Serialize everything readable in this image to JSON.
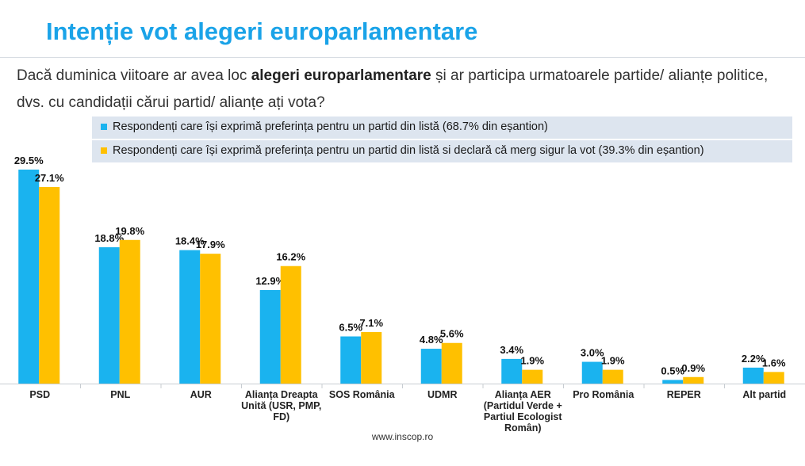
{
  "header": {
    "title": "Intenție vot alegeri europarlamentare",
    "question_pre": "Dacă duminica viitoare ar avea loc ",
    "question_bold": "alegeri europarlamentare",
    "question_post": " și ar participa urmatoarele partide/ alianțe politice, dvs. cu candidații cărui partid/ alianțe ați vota?"
  },
  "colors": {
    "title": "#1aa3e8",
    "legend_band": "#dde5ef",
    "series1": "#1ab3ef",
    "series2": "#ffc000"
  },
  "legend": {
    "items": [
      "Respondenți care își exprimă preferința pentru un partid din listă (68.7% din eșantion)",
      "Respondenți care își exprimă preferința pentru un partid din listă si declară că merg sigur la vot (39.3% din eșantion)"
    ]
  },
  "chart_data": {
    "type": "bar",
    "categories": [
      "PSD",
      "PNL",
      "AUR",
      "Alianța Dreapta Unită (USR, PMP, FD)",
      "SOS România",
      "UDMR",
      "Alianța AER (Partidul Verde + Partiul Ecologist Român)",
      "Pro România",
      "REPER",
      "Alt partid"
    ],
    "series": [
      {
        "name": "Respondenți care își exprimă preferința pentru un partid din listă (68.7% din eșantion)",
        "values": [
          29.5,
          18.8,
          18.4,
          12.9,
          6.5,
          4.8,
          3.4,
          3.0,
          0.5,
          2.2
        ],
        "labels": [
          "29.5%",
          "18.8%",
          "18.4%",
          "12.9%",
          "6.5%",
          "4.8%",
          "3.4%",
          "3.0%",
          "0.5%",
          "2.2%"
        ]
      },
      {
        "name": "Respondenți care își exprimă preferința pentru un partid din listă si declară că merg sigur la vot (39.3% din eșantion)",
        "values": [
          27.1,
          19.8,
          17.9,
          16.2,
          7.1,
          5.6,
          1.9,
          1.9,
          0.9,
          1.6
        ],
        "labels": [
          "27.1%",
          "19.8%",
          "17.9%",
          "16.2%",
          "7.1%",
          "5.6%",
          "1.9%",
          "1.9%",
          "0.9%",
          "1.6%"
        ]
      }
    ],
    "ylim": [
      0,
      30
    ],
    "grid": false,
    "legend_position": "top"
  },
  "footer": {
    "source": "www.inscop.ro"
  }
}
